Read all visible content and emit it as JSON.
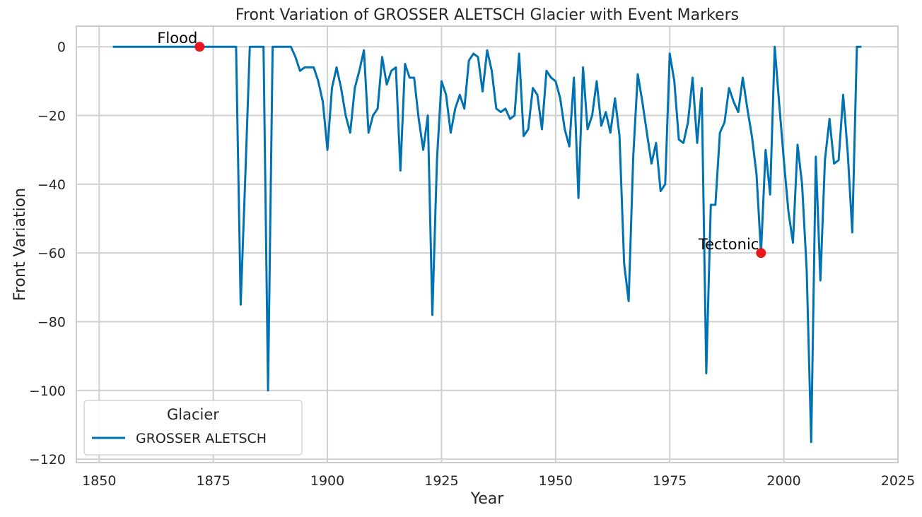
{
  "chart_data": {
    "type": "line",
    "title": "Front Variation of GROSSER ALETSCH Glacier with Event Markers",
    "xlabel": "Year",
    "ylabel": "Front Variation",
    "xlim": [
      1845,
      2025
    ],
    "ylim": [
      -121,
      6
    ],
    "x_ticks": [
      1850,
      1875,
      1900,
      1925,
      1950,
      1975,
      2000,
      2025
    ],
    "y_ticks": [
      0,
      -20,
      -40,
      -60,
      -80,
      -100,
      -120
    ],
    "x_tick_labels": [
      "1850",
      "1875",
      "1900",
      "1925",
      "1950",
      "1975",
      "2000",
      "2025"
    ],
    "y_tick_labels": [
      "0",
      "−20",
      "−40",
      "−60",
      "−80",
      "−100",
      "−120"
    ],
    "grid": true,
    "legend": {
      "title": "Glacier",
      "position": "lower-left"
    },
    "colors": {
      "series": "#0072b2",
      "event": "#e8161d",
      "grid": "#d0d0d0",
      "frame": "#cccccc"
    },
    "series": [
      {
        "name": "GROSSER ALETSCH",
        "x": [
          1853,
          1854,
          1855,
          1856,
          1857,
          1858,
          1859,
          1860,
          1861,
          1862,
          1863,
          1864,
          1865,
          1866,
          1867,
          1868,
          1869,
          1870,
          1871,
          1872,
          1873,
          1874,
          1875,
          1876,
          1877,
          1878,
          1879,
          1880,
          1881,
          1882,
          1883,
          1884,
          1885,
          1886,
          1887,
          1888,
          1889,
          1890,
          1891,
          1892,
          1893,
          1894,
          1895,
          1896,
          1897,
          1898,
          1899,
          1900,
          1901,
          1902,
          1903,
          1904,
          1905,
          1906,
          1907,
          1908,
          1909,
          1910,
          1911,
          1912,
          1913,
          1914,
          1915,
          1916,
          1917,
          1918,
          1919,
          1920,
          1921,
          1922,
          1923,
          1924,
          1925,
          1926,
          1927,
          1928,
          1929,
          1930,
          1931,
          1932,
          1933,
          1934,
          1935,
          1936,
          1937,
          1938,
          1939,
          1940,
          1941,
          1942,
          1943,
          1944,
          1945,
          1946,
          1947,
          1948,
          1949,
          1950,
          1951,
          1952,
          1953,
          1954,
          1955,
          1956,
          1957,
          1958,
          1959,
          1960,
          1961,
          1962,
          1963,
          1964,
          1965,
          1966,
          1967,
          1968,
          1969,
          1970,
          1971,
          1972,
          1973,
          1974,
          1975,
          1976,
          1977,
          1978,
          1979,
          1980,
          1981,
          1982,
          1983,
          1984,
          1985,
          1986,
          1987,
          1988,
          1989,
          1990,
          1991,
          1992,
          1993,
          1994,
          1995,
          1996,
          1997,
          1998,
          1999,
          2000,
          2001,
          2002,
          2003,
          2004,
          2005,
          2006,
          2007,
          2008,
          2009,
          2010,
          2011,
          2012,
          2013,
          2014,
          2015,
          2016,
          2017
        ],
        "values": [
          0,
          0,
          0,
          0,
          0,
          0,
          0,
          0,
          0,
          0,
          0,
          0,
          0,
          0,
          0,
          0,
          0,
          0,
          0,
          0,
          0,
          0,
          0,
          0,
          0,
          0,
          0,
          0,
          -75,
          -38,
          0,
          0,
          0,
          0,
          -100,
          0,
          0,
          0,
          0,
          0,
          -3,
          -7,
          -6,
          -6,
          -6,
          -10,
          -16,
          -30,
          -12,
          -6,
          -12,
          -20,
          -25,
          -12,
          -7,
          -1,
          -25,
          -20,
          -18,
          -3,
          -11,
          -7,
          -6,
          -36,
          -5,
          -9,
          -9,
          -21,
          -30,
          -20,
          -78,
          -33,
          -10,
          -14,
          -25,
          -18,
          -14,
          -18,
          -4,
          -2,
          -3,
          -13,
          -1,
          -7,
          -18,
          -19,
          -18,
          -21,
          -20,
          -2,
          -26,
          -24,
          -12,
          -14,
          -24,
          -7,
          -9,
          -10,
          -15,
          -24,
          -29,
          -9,
          -44,
          -6,
          -24,
          -20,
          -10,
          -23,
          -19,
          -25,
          -15,
          -26,
          -63,
          -74,
          -32,
          -8,
          -16,
          -25,
          -34,
          -28,
          -42,
          -40,
          -2,
          -10,
          -27,
          -28,
          -22,
          -9,
          -28,
          -12,
          -95,
          -46,
          -46,
          -25,
          -22,
          -12,
          -16,
          -19,
          -9,
          -18,
          -26,
          -37,
          -60,
          -30,
          -43,
          0,
          -17,
          -33,
          -48,
          -57,
          -28.5,
          -40,
          -65,
          -115,
          -32,
          -68,
          -33,
          -21,
          -34,
          -33,
          -14,
          -31,
          -54,
          0,
          0
        ]
      }
    ],
    "events": [
      {
        "label": "Flood",
        "x": 1872,
        "y": 0
      },
      {
        "label": "Tectonic",
        "x": 1995,
        "y": -60
      }
    ]
  }
}
